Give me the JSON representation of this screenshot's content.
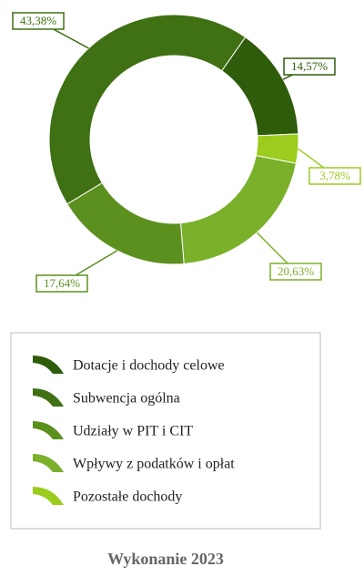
{
  "chart_data": {
    "type": "donut",
    "title": "Wykonanie 2023",
    "series": [
      {
        "name": "Dotacje i dochody celowe",
        "color": "#2f5c0b",
        "values": [
          14.57
        ],
        "value_labels": [
          "14,57%"
        ]
      },
      {
        "name": "Subwencja ogólna",
        "color": "#3f7013",
        "values": [
          43.38
        ],
        "value_labels": [
          "43,38%"
        ]
      },
      {
        "name": "Udziały w PIT i CIT",
        "color": "#5b901f",
        "values": [
          17.64
        ],
        "value_labels": [
          "17,64%"
        ]
      },
      {
        "name": "Wpływy z podatków i opłat",
        "color": "#7bb02a",
        "values": [
          20.63
        ],
        "value_labels": [
          "20,63%"
        ]
      },
      {
        "name": "Pozostałe dochody",
        "color": "#9bcc1e",
        "values": [
          3.78
        ],
        "value_labels": [
          "3,78%"
        ]
      }
    ]
  }
}
